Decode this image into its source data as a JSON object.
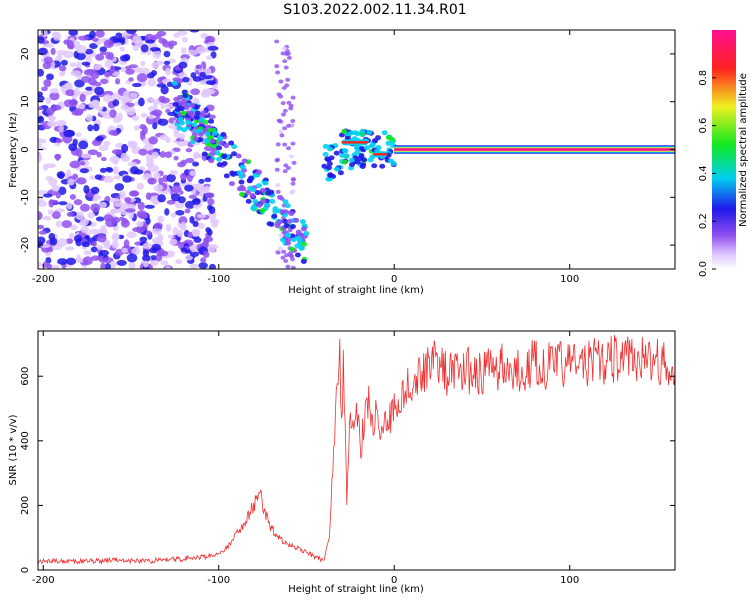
{
  "figure_title": "S103.2022.002.11.34.R01",
  "colors": {
    "snr_line": "#f03030",
    "axis": "#000000",
    "ridge": "#ff2020",
    "colormap": [
      "#ffffff",
      "#e8d4ff",
      "#a05cf0",
      "#2a20e8",
      "#00d8e8",
      "#20e820",
      "#f0f020",
      "#ff2020",
      "#ff1090"
    ]
  },
  "chart_data": [
    {
      "type": "heatmap",
      "title": "",
      "xlabel": "Height of straight line (km)",
      "ylabel": "Frequency (Hz)",
      "xlim": [
        -203,
        160
      ],
      "ylim": [
        -25,
        25
      ],
      "x_ticks": [
        -200,
        -100,
        0,
        100
      ],
      "y_ticks": [
        -20,
        -10,
        0,
        10,
        20
      ],
      "colorbar": {
        "label": "Normalized spectral amplitude",
        "range": [
          0,
          1
        ],
        "ticks": [
          0.0,
          0.2,
          0.4,
          0.6,
          0.8
        ]
      },
      "features": {
        "noise_region_x": [
          -203,
          -110
        ],
        "tilted_band": {
          "x": [
            -125,
            -50
          ],
          "frequency_at_start": 10,
          "frequency_at_end": -20
        },
        "dc_line": {
          "x_start": 0,
          "x_end": 160,
          "frequency": 0,
          "amplitude": 0.9
        }
      }
    },
    {
      "type": "line",
      "title": "",
      "xlabel": "Height of straight line (km)",
      "ylabel": "SNR (10 * v/v)",
      "xlim": [
        -203,
        160
      ],
      "ylim": [
        0,
        740
      ],
      "x_ticks": [
        -200,
        -100,
        0,
        100
      ],
      "y_ticks": [
        0,
        200,
        400,
        600
      ],
      "series": [
        {
          "x": [
            -203,
            -190,
            -180,
            -160,
            -140,
            -120,
            -110,
            -100,
            -95,
            -90,
            -85,
            -80,
            -77,
            -74,
            -70,
            -65,
            -60,
            -55,
            -50,
            -45,
            -40,
            -37,
            -35,
            -33,
            -31,
            -30,
            -29,
            -27,
            -25,
            -23,
            -21,
            -19,
            -17,
            -15,
            -12,
            -10,
            -8,
            -5,
            -2,
            0,
            5,
            10,
            15,
            20,
            25,
            30,
            40,
            50,
            60,
            70,
            80,
            90,
            100,
            110,
            120,
            130,
            140,
            150,
            155,
            160
          ],
          "y": [
            25,
            28,
            26,
            30,
            28,
            35,
            40,
            50,
            70,
            110,
            150,
            200,
            250,
            180,
            130,
            95,
            75,
            70,
            55,
            40,
            30,
            110,
            300,
            560,
            740,
            420,
            650,
            200,
            520,
            430,
            500,
            380,
            460,
            530,
            440,
            520,
            390,
            480,
            470,
            500,
            560,
            580,
            610,
            640,
            660,
            600,
            620,
            610,
            630,
            620,
            640,
            630,
            640,
            640,
            650,
            660,
            650,
            650,
            640,
            620
          ]
        }
      ]
    }
  ]
}
